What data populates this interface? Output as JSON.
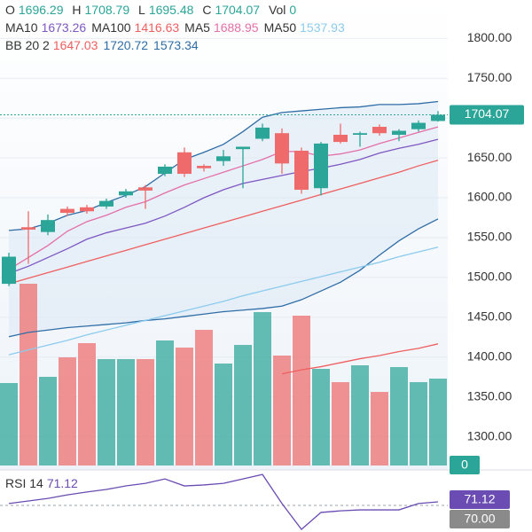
{
  "chart_data": {
    "type": "candlestick",
    "header_labels": {
      "open": "O",
      "high": "H",
      "low": "L",
      "close": "C",
      "volume": "Vol"
    },
    "open": [
      1492,
      1563,
      1557,
      1586,
      1588,
      1589,
      1603,
      1613,
      1630,
      1657,
      1640,
      1646,
      1661,
      1674,
      1681,
      1659,
      1612,
      1679,
      1679,
      1689,
      1679,
      1686,
      1696.29
    ],
    "high": [
      1531,
      1583,
      1579,
      1589,
      1591,
      1599,
      1611,
      1616,
      1642,
      1663,
      1642,
      1660,
      1664,
      1693,
      1687,
      1663,
      1670,
      1693,
      1683,
      1692,
      1686,
      1697,
      1708.79
    ],
    "low": [
      1489,
      1517,
      1553,
      1577,
      1580,
      1586,
      1600,
      1586,
      1627,
      1626,
      1633,
      1640,
      1612,
      1671,
      1630,
      1605,
      1603,
      1668,
      1664,
      1678,
      1671,
      1683,
      1695.48
    ],
    "close": [
      1526,
      1560,
      1572,
      1581,
      1583,
      1596,
      1608,
      1609,
      1639,
      1630,
      1637,
      1652,
      1664,
      1688,
      1643,
      1610,
      1668,
      1670,
      1681,
      1681,
      1684,
      1694,
      1704.07
    ],
    "up_color": "#2ba597",
    "down_color": "#ef6b6b",
    "ylim": [
      1264,
      1837
    ],
    "yticks": [
      {
        "value": 1300,
        "label": "1300.00"
      },
      {
        "value": 1350,
        "label": "1350.00"
      },
      {
        "value": 1400,
        "label": "1400.00"
      },
      {
        "value": 1450,
        "label": "1450.00"
      },
      {
        "value": 1500,
        "label": "1500.00"
      },
      {
        "value": 1550,
        "label": "1550.00"
      },
      {
        "value": 1600,
        "label": "1600.00"
      },
      {
        "value": 1650,
        "label": "1650.00"
      },
      {
        "value": 1700,
        "label": "1700.00"
      },
      {
        "value": 1750,
        "label": "1750.00"
      },
      {
        "value": 1800,
        "label": "1800.00"
      }
    ],
    "series": [
      {
        "name": "MA10",
        "color": "#7e57c2",
        "values": [
          1505,
          1514,
          1525,
          1536,
          1548,
          1556,
          1562,
          1568,
          1577,
          1588,
          1600,
          1610,
          1618,
          1623,
          1628,
          1633,
          1637,
          1642,
          1648,
          1656,
          1662,
          1667,
          1673.26
        ]
      },
      {
        "name": "MA100",
        "color": "#ef5f5f",
        "values": [
          null,
          null,
          null,
          null,
          null,
          null,
          null,
          null,
          null,
          null,
          null,
          null,
          null,
          null,
          1379,
          1384,
          1388,
          1393,
          1398,
          1402,
          1407,
          1411,
          1416.63
        ]
      },
      {
        "name": "MA5",
        "color": "#e46fa8",
        "values": [
          1510,
          1525,
          1540,
          1558,
          1570,
          1578,
          1588,
          1595,
          1606,
          1616,
          1624,
          1632,
          1640,
          1648,
          1658,
          1658,
          1652,
          1655,
          1660,
          1668,
          1675,
          1682,
          1688.95
        ]
      },
      {
        "name": "MA50",
        "color": "#8ccbee",
        "values": [
          1403,
          1409,
          1415,
          1421,
          1428,
          1434,
          1440,
          1446,
          1452,
          1458,
          1464,
          1470,
          1477,
          1483,
          1489,
          1495,
          1501,
          1507,
          1513,
          1519,
          1526,
          1532,
          1537.93
        ]
      }
    ],
    "bollinger": {
      "name": "BB 20 2",
      "fill": "#dde9f5",
      "middle": {
        "color": "#ef5f5f",
        "values": [
          1492,
          1499,
          1506,
          1513,
          1520,
          1527,
          1534,
          1541,
          1548,
          1555,
          1562,
          1569,
          1576,
          1583,
          1590,
          1597,
          1604,
          1611,
          1618,
          1625,
          1632,
          1640,
          1647.03
        ]
      },
      "upper": {
        "color": "#2f6da6",
        "values": [
          1559,
          1561,
          1568,
          1578,
          1584,
          1594,
          1603,
          1614,
          1631,
          1648,
          1657,
          1667,
          1683,
          1701,
          1707,
          1709,
          1711,
          1713,
          1714,
          1717,
          1717,
          1718,
          1720.72
        ]
      },
      "lower": {
        "color": "#2f6da6",
        "values": [
          1425.6,
          1431,
          1434,
          1437,
          1439,
          1441,
          1443,
          1446,
          1448,
          1451,
          1454,
          1457,
          1459,
          1461,
          1464,
          1472,
          1483,
          1494,
          1509,
          1528,
          1546,
          1561,
          1573.34
        ]
      }
    },
    "volume": {
      "current": 0,
      "ylim": [
        0,
        515
      ],
      "values": [
        93,
        205,
        100,
        122,
        138,
        120,
        120,
        120,
        141,
        133,
        153,
        115,
        136,
        173,
        124,
        169,
        109,
        94,
        113,
        83,
        111,
        94,
        98
      ]
    },
    "rsi": {
      "name": "RSI 14",
      "color": "#6a4cb3",
      "ylim": [
        61.67,
        81.11
      ],
      "level": {
        "value": 70,
        "label": "70.00"
      },
      "level_color": "#8a8a8a",
      "values": [
        70.6,
        71.4,
        72.2,
        73.3,
        74.2,
        75,
        76.1,
        76.9,
        78.3,
        76.1,
        76.4,
        76.9,
        78.3,
        79.7,
        70.6,
        62.5,
        67.8,
        68.3,
        68.6,
        68.6,
        68.6,
        70.6,
        71.12
      ]
    }
  }
}
